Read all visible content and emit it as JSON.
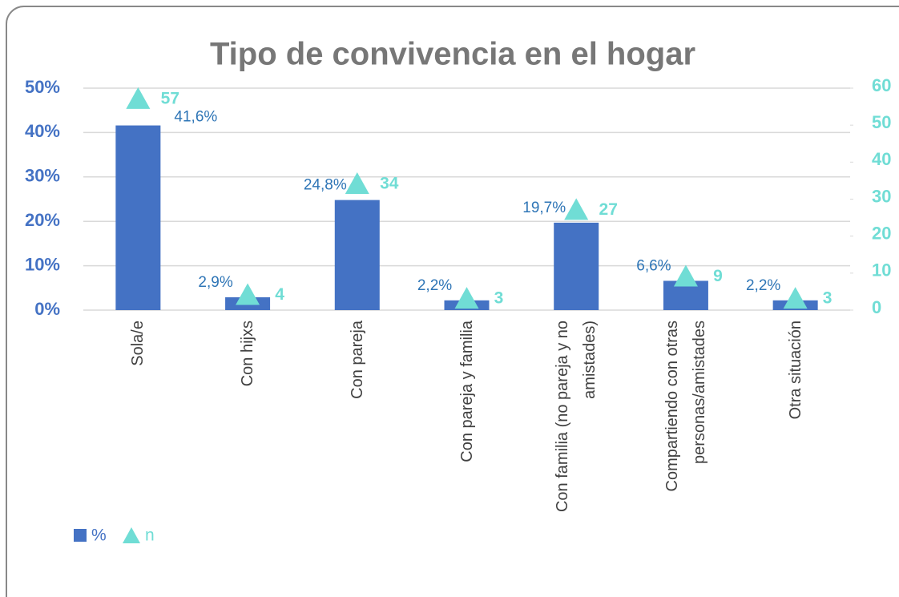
{
  "chart_data": {
    "type": "bar",
    "title": "Tipo de convivencia en el hogar",
    "categories": [
      "Sola/e",
      "Con hijxs",
      "Con pareja",
      "Con pareja y familia",
      "Con familia (no pareja y no amistades)",
      "Compartiendo con otras personas/amistades",
      "Otra situación"
    ],
    "series": [
      {
        "name": "%",
        "color": "#4472c4",
        "values": [
          41.6,
          2.9,
          24.8,
          2.2,
          19.7,
          6.6,
          2.2
        ],
        "value_labels": [
          "41,6%",
          "2,9%",
          "24,8%",
          "2,2%",
          "19,7%",
          "6,6%",
          "2,2%"
        ]
      },
      {
        "name": "n",
        "color": "#70ddd5",
        "axis": "y2",
        "marker": "triangle",
        "values": [
          57,
          4,
          34,
          3,
          27,
          9,
          3
        ]
      }
    ],
    "ylim": [
      0,
      50
    ],
    "yticks": [
      {
        "value": 0,
        "label": "0%"
      },
      {
        "value": 10,
        "label": "10%"
      },
      {
        "value": 20,
        "label": "20%"
      },
      {
        "value": 30,
        "label": "30%"
      },
      {
        "value": 40,
        "label": "40%"
      },
      {
        "value": 50,
        "label": "50%"
      }
    ],
    "y2lim": [
      0,
      60
    ],
    "y2ticks": [
      0,
      10,
      20,
      30,
      40,
      50,
      60
    ],
    "grid": true,
    "legend": "bottom-left"
  }
}
